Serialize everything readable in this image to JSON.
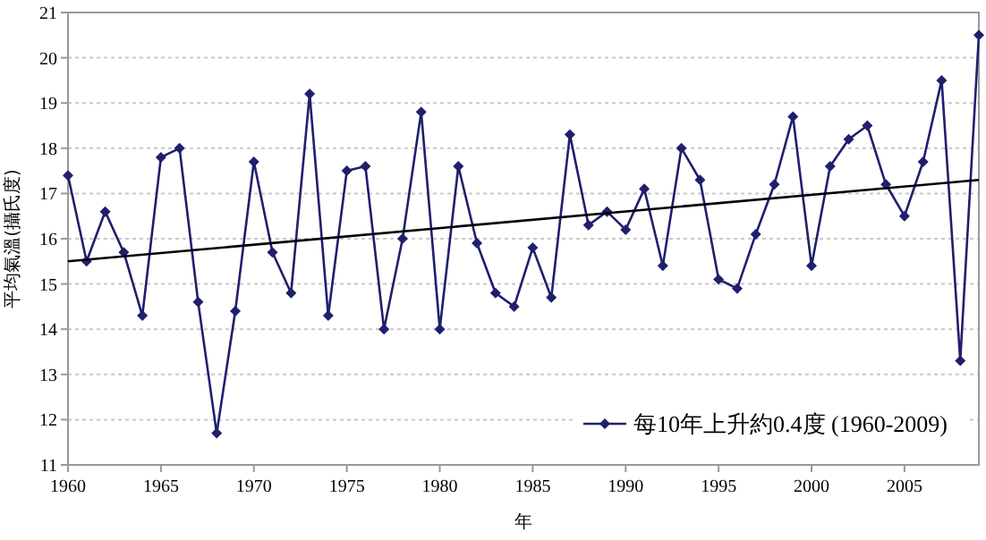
{
  "chart_data": {
    "type": "line",
    "xlabel": "年",
    "ylabel": "平均氣溫(攝氏度)",
    "xlim": [
      1960,
      2009
    ],
    "xticks": [
      1960,
      1965,
      1970,
      1975,
      1980,
      1985,
      1990,
      1995,
      2000,
      2005
    ],
    "ylim": [
      11,
      21
    ],
    "yticks": [
      11,
      12,
      13,
      14,
      15,
      16,
      17,
      18,
      19,
      20,
      21
    ],
    "grid": "y",
    "legend": "bottom right",
    "series": [
      {
        "name": "每10年上升約0.4度 (1960-2009)",
        "color": "#1f1f6e",
        "marker": "diamond",
        "x": [
          1960,
          1961,
          1962,
          1963,
          1964,
          1965,
          1966,
          1967,
          1968,
          1969,
          1970,
          1971,
          1972,
          1973,
          1974,
          1975,
          1976,
          1977,
          1978,
          1979,
          1980,
          1981,
          1982,
          1983,
          1984,
          1985,
          1986,
          1987,
          1988,
          1989,
          1990,
          1991,
          1992,
          1993,
          1994,
          1995,
          1996,
          1997,
          1998,
          1999,
          2000,
          2001,
          2002,
          2003,
          2004,
          2005,
          2006,
          2007,
          2008,
          2009
        ],
        "values": [
          17.4,
          15.5,
          16.6,
          15.7,
          14.3,
          17.8,
          18.0,
          14.6,
          11.7,
          14.4,
          17.7,
          15.7,
          14.8,
          19.2,
          14.3,
          17.5,
          17.6,
          14.0,
          16.0,
          18.8,
          14.0,
          17.6,
          15.9,
          14.8,
          14.5,
          15.8,
          14.7,
          18.3,
          16.3,
          16.6,
          16.2,
          17.1,
          15.4,
          18.0,
          17.3,
          15.1,
          14.9,
          16.1,
          17.2,
          18.7,
          15.4,
          17.6,
          18.2,
          18.5,
          17.2,
          16.5,
          17.7,
          19.5,
          13.3,
          20.5
        ]
      },
      {
        "type": "line",
        "color": "#000000",
        "marker": "none",
        "x": [
          1960,
          2009
        ],
        "values": [
          15.5,
          17.3
        ]
      }
    ]
  }
}
